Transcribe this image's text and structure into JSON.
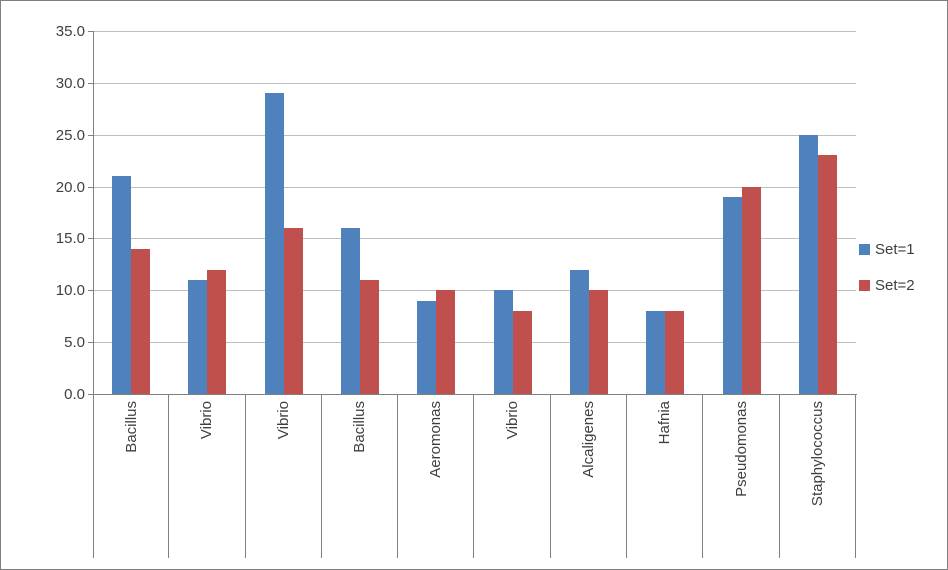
{
  "chart_data": {
    "type": "bar",
    "title": "",
    "xlabel": "",
    "ylabel": "",
    "categories": [
      "Bacillus",
      "Vibrio",
      "Vibrio",
      "Bacillus",
      "Aeromonas",
      "Vibrio",
      "Alcaligenes",
      "Hafnia",
      "Pseudomonas",
      "Staphylococcus"
    ],
    "series": [
      {
        "name": "Set=1",
        "color": "#4f81bd",
        "values": [
          21,
          11,
          29,
          16,
          9,
          10,
          12,
          8,
          19,
          25
        ]
      },
      {
        "name": "Set=2",
        "color": "#c0504d",
        "values": [
          14,
          12,
          16,
          11,
          10,
          8,
          10,
          8,
          20,
          23
        ]
      }
    ],
    "ylim": [
      0,
      35
    ],
    "ytick_step": 5,
    "ytick_labels": [
      "0.0",
      "5.0",
      "10.0",
      "15.0",
      "20.0",
      "25.0",
      "30.0",
      "35.0"
    ],
    "grid": "horizontal",
    "legend_position": "right"
  },
  "legend": {
    "set1_label": "Set=1",
    "set2_label": "Set=2"
  },
  "colors": {
    "series1": "#4f81bd",
    "series2": "#c0504d",
    "gridline": "#bfbfbf",
    "axis": "#808080"
  }
}
